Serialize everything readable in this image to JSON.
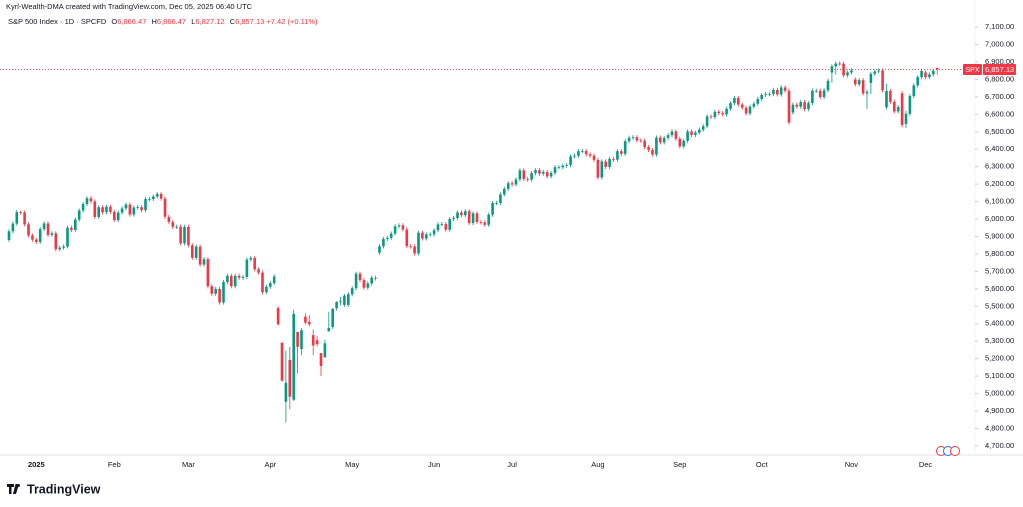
{
  "chart_data": {
    "type": "candlestick",
    "credit": "Kyrl-Wealth-DMA created with TradingView.com, Dec 05, 2025 06:40 UTC",
    "legend": {
      "symbol": "S&P 500 Index · 1D · SPCFD",
      "ohlc": [
        {
          "key": "O",
          "value": "6,866.47"
        },
        {
          "key": "H",
          "value": "6,866.47"
        },
        {
          "key": "L",
          "value": "6,827.12"
        },
        {
          "key": "C",
          "value": "6,857.13"
        }
      ],
      "change": "+7.42 (+0.11%)"
    },
    "brand": "TradingView",
    "up_color": "#089981",
    "down_color": "#f23645",
    "grid": false,
    "price_tag": {
      "symbol": "SPX",
      "value": 6857.13,
      "label": "6,857.13"
    },
    "ylim": [
      4648,
      7152
    ],
    "yticks": [
      {
        "value": 4700,
        "label": "4,700.00"
      },
      {
        "value": 4800,
        "label": "4,800.00"
      },
      {
        "value": 4900,
        "label": "4,900.00"
      },
      {
        "value": 5000,
        "label": "5,000.00"
      },
      {
        "value": 5100,
        "label": "5,100.00"
      },
      {
        "value": 5200,
        "label": "5,200.00"
      },
      {
        "value": 5300,
        "label": "5,300.00"
      },
      {
        "value": 5400,
        "label": "5,400.00"
      },
      {
        "value": 5500,
        "label": "5,500.00"
      },
      {
        "value": 5600,
        "label": "5,600.00"
      },
      {
        "value": 5700,
        "label": "5,700.00"
      },
      {
        "value": 5800,
        "label": "5,800.00"
      },
      {
        "value": 5900,
        "label": "5,900.00"
      },
      {
        "value": 6000,
        "label": "6,000.00"
      },
      {
        "value": 6100,
        "label": "6,100.00"
      },
      {
        "value": 6200,
        "label": "6,200.00"
      },
      {
        "value": 6300,
        "label": "6,300.00"
      },
      {
        "value": 6400,
        "label": "6,400.00"
      },
      {
        "value": 6500,
        "label": "6,500.00"
      },
      {
        "value": 6600,
        "label": "6,600.00"
      },
      {
        "value": 6700,
        "label": "6,700.00"
      },
      {
        "value": 6800,
        "label": "6,800.00"
      },
      {
        "value": 6900,
        "label": "6,900.00"
      },
      {
        "value": 7000,
        "label": "7,000.00"
      },
      {
        "value": 7100,
        "label": "7,100.00"
      }
    ],
    "categories": [
      null,
      null,
      null,
      null,
      null,
      null,
      null,
      "2025",
      null,
      null,
      null,
      null,
      null,
      null,
      null,
      null,
      null,
      null,
      null,
      null,
      null,
      null,
      null,
      null,
      null,
      null,
      null,
      "Feb",
      null,
      null,
      null,
      null,
      null,
      null,
      null,
      null,
      null,
      null,
      null,
      null,
      null,
      null,
      null,
      null,
      null,
      null,
      "Mar",
      null,
      null,
      null,
      null,
      null,
      null,
      null,
      null,
      null,
      null,
      null,
      null,
      null,
      null,
      null,
      null,
      null,
      null,
      null,
      null,
      "Apr",
      null,
      null,
      null,
      null,
      null,
      null,
      null,
      null,
      null,
      null,
      null,
      null,
      null,
      null,
      null,
      null,
      null,
      null,
      null,
      null,
      "May",
      null,
      null,
      null,
      null,
      null,
      null,
      null,
      null,
      null,
      null,
      null,
      null,
      null,
      null,
      null,
      null,
      null,
      null,
      null,
      null,
      "Jun",
      null,
      null,
      null,
      null,
      null,
      null,
      null,
      null,
      null,
      null,
      null,
      null,
      null,
      null,
      null,
      null,
      null,
      null,
      null,
      "Jul",
      null,
      null,
      null,
      null,
      null,
      null,
      null,
      null,
      null,
      null,
      null,
      null,
      null,
      null,
      null,
      null,
      null,
      null,
      null,
      null,
      null,
      "Aug",
      null,
      null,
      null,
      null,
      null,
      null,
      null,
      null,
      null,
      null,
      null,
      null,
      null,
      null,
      null,
      null,
      null,
      null,
      null,
      null,
      "Sep",
      null,
      null,
      null,
      null,
      null,
      null,
      null,
      null,
      null,
      null,
      null,
      null,
      null,
      null,
      null,
      null,
      null,
      null,
      null,
      null,
      "Oct",
      null,
      null,
      null,
      null,
      null,
      null,
      null,
      null,
      null,
      null,
      null,
      null,
      null,
      null,
      null,
      null,
      null,
      null,
      null,
      null,
      null,
      null,
      "Nov",
      null,
      null,
      null,
      null,
      null,
      null,
      null,
      null,
      null,
      null,
      null,
      null,
      null,
      null,
      null,
      null,
      null,
      null,
      "Dec",
      null,
      null,
      null
    ],
    "open": [
      5880,
      5930,
      5974,
      6040,
      6037,
      5970,
      5906,
      5882,
      5869,
      5942,
      5975,
      5909,
      5918,
      5827,
      5836,
      5843,
      5950,
      5937,
      5997,
      6049,
      6086,
      6119,
      6101,
      6012,
      6068,
      6039,
      6071,
      6041,
      5994,
      6037,
      6061,
      6083,
      6026,
      6066,
      6068,
      6051,
      6115,
      6115,
      6129,
      6144,
      6117,
      6013,
      5983,
      5955,
      5956,
      5861,
      5955,
      5850,
      5778,
      5842,
      5739,
      5770,
      5615,
      5572,
      5599,
      5522,
      5639,
      5675,
      5615,
      5675,
      5663,
      5668,
      5768,
      5777,
      5712,
      5693,
      5581,
      5612,
      5633,
      5490,
      5292,
      4953,
      5193,
      4965,
      5353,
      5255,
      5441,
      5411,
      5335,
      5305,
      5232,
      5207,
      5357,
      5381,
      5489,
      5526,
      5508,
      5508,
      5569,
      5604,
      5687,
      5650,
      5607,
      5631,
      5664,
      5807,
      5844,
      5886,
      5892,
      5917,
      5958,
      5964,
      5940,
      5845,
      5842,
      5803,
      5922,
      5889,
      5912,
      5912,
      5936,
      5970,
      5971,
      5939,
      6000,
      6006,
      6038,
      6022,
      6045,
      5977,
      6033,
      5983,
      5981,
      5967,
      6025,
      6092,
      6092,
      6141,
      6173,
      6205,
      6198,
      6227,
      6279,
      6230,
      6226,
      6263,
      6280,
      6260,
      6269,
      6244,
      6264,
      6297,
      6297,
      6306,
      6309,
      6359,
      6363,
      6389,
      6390,
      6371,
      6363,
      6339,
      6238,
      6330,
      6299,
      6345,
      6340,
      6389,
      6374,
      6446,
      6466,
      6469,
      6450,
      6449,
      6412,
      6396,
      6370,
      6467,
      6439,
      6465,
      6481,
      6502,
      6460,
      6416,
      6448,
      6502,
      6482,
      6495,
      6512,
      6532,
      6588,
      6584,
      6615,
      6607,
      6600,
      6632,
      6664,
      6694,
      6656,
      6638,
      6605,
      6644,
      6661,
      6688,
      6711,
      6715,
      6716,
      6740,
      6714,
      6754,
      6735,
      6610,
      6655,
      6644,
      6671,
      6630,
      6664,
      6735,
      6735,
      6699,
      6738,
      6840,
      6875,
      6891,
      6890,
      6823,
      6840,
      6800,
      6772,
      6796,
      6720,
      6780,
      6832,
      6846,
      6851,
      6640,
      6734,
      6672,
      6617,
      6720,
      6545,
      6603,
      6705,
      6766,
      6813,
      6840,
      6813,
      6829,
      6866.47
    ],
    "high": [
      5942,
      5986,
      6052,
      6049,
      6049,
      5982,
      5918,
      5894,
      5954,
      5987,
      5987,
      5930,
      5930,
      5848,
      5855,
      5962,
      5962,
      6009,
      6061,
      6098,
      6131,
      6131,
      6113,
      6080,
      6080,
      6083,
      6083,
      6053,
      6049,
      6073,
      6095,
      6095,
      6078,
      6080,
      6080,
      6127,
      6127,
      6141,
      6156,
      6156,
      6129,
      6025,
      5995,
      5968,
      5968,
      5967,
      5967,
      5862,
      5854,
      5854,
      5782,
      5782,
      5627,
      5611,
      5611,
      5651,
      5687,
      5687,
      5687,
      5687,
      5680,
      5780,
      5789,
      5789,
      5724,
      5705,
      5624,
      5645,
      5683,
      5500,
      5292,
      5246,
      5267,
      5481,
      5353,
      5376,
      5459,
      5450,
      5367,
      5329,
      5232,
      5309,
      5469,
      5490,
      5528,
      5554,
      5571,
      5581,
      5616,
      5699,
      5699,
      5662,
      5643,
      5676,
      5676,
      5856,
      5898,
      5904,
      5929,
      5970,
      5976,
      5976,
      5952,
      5857,
      5854,
      5934,
      5934,
      5924,
      5924,
      5948,
      5982,
      5983,
      5983,
      6012,
      6018,
      6050,
      6050,
      6057,
      6057,
      6045,
      6045,
      5995,
      5993,
      6037,
      6104,
      6104,
      6153,
      6185,
      6217,
      6217,
      6239,
      6291,
      6291,
      6242,
      6275,
      6292,
      6292,
      6281,
      6281,
      6276,
      6309,
      6309,
      6318,
      6321,
      6371,
      6375,
      6401,
      6402,
      6402,
      6383,
      6375,
      6351,
      6342,
      6342,
      6357,
      6357,
      6401,
      6401,
      6458,
      6478,
      6481,
      6481,
      6462,
      6461,
      6424,
      6408,
      6479,
      6479,
      6477,
      6493,
      6514,
      6514,
      6472,
      6460,
      6514,
      6514,
      6507,
      6524,
      6544,
      6600,
      6600,
      6627,
      6627,
      6619,
      6644,
      6676,
      6706,
      6706,
      6668,
      6650,
      6656,
      6673,
      6700,
      6723,
      6727,
      6728,
      6752,
      6752,
      6766,
      6766,
      6747,
      6667,
      6667,
      6683,
      6683,
      6676,
      6747,
      6747,
      6747,
      6750,
      6804,
      6887,
      6903,
      6903,
      6902,
      6852,
      6864,
      6812,
      6808,
      6808,
      6741,
      6844,
      6858,
      6863,
      6863,
      6775,
      6746,
      6684,
      6654,
      6732,
      6620,
      6717,
      6778,
      6825,
      6861,
      6852,
      6841,
      6861,
      6866.47
    ],
    "low": [
      5868,
      5918,
      5962,
      6025,
      5958,
      5894,
      5870,
      5857,
      5857,
      5930,
      5897,
      5897,
      5815,
      5815,
      5824,
      5831,
      5925,
      5925,
      5985,
      6037,
      6074,
      6089,
      6000,
      6000,
      6027,
      6027,
      6029,
      5982,
      5982,
      6025,
      6049,
      6014,
      6014,
      6054,
      6039,
      6039,
      6103,
      6103,
      6117,
      6105,
      6001,
      5971,
      5943,
      5943,
      5849,
      5849,
      5838,
      5766,
      5766,
      5727,
      5727,
      5603,
      5560,
      5560,
      5510,
      5510,
      5627,
      5603,
      5603,
      5651,
      5651,
      5656,
      5756,
      5700,
      5681,
      5569,
      5569,
      5600,
      5621,
      5390,
      5069,
      4835,
      4910,
      4957,
      5115,
      5220,
      5395,
      5386,
      5220,
      5269,
      5101,
      5207,
      5355,
      5371,
      5475,
      5505,
      5497,
      5496,
      5557,
      5592,
      5638,
      5595,
      5595,
      5619,
      5648,
      5795,
      5832,
      5874,
      5880,
      5905,
      5946,
      5928,
      5833,
      5830,
      5791,
      5791,
      5877,
      5877,
      5900,
      5900,
      5924,
      5958,
      5927,
      5927,
      5988,
      5994,
      6010,
      6010,
      5965,
      5965,
      5971,
      5969,
      5955,
      5955,
      6013,
      6080,
      6080,
      6129,
      6161,
      6186,
      6186,
      6215,
      6218,
      6214,
      6214,
      6251,
      6248,
      6248,
      6232,
      6232,
      6252,
      6285,
      6285,
      6294,
      6297,
      6347,
      6351,
      6377,
      6359,
      6351,
      6327,
      6226,
      6226,
      6287,
      6287,
      6328,
      6328,
      6362,
      6362,
      6434,
      6454,
      6438,
      6437,
      6400,
      6384,
      6358,
      6358,
      6427,
      6427,
      6453,
      6469,
      6448,
      6404,
      6404,
      6436,
      6470,
      6470,
      6483,
      6500,
      6520,
      6572,
      6572,
      6595,
      6588,
      6588,
      6620,
      6652,
      6644,
      6626,
      6593,
      6593,
      6632,
      6649,
      6676,
      6699,
      6703,
      6704,
      6702,
      6702,
      6723,
      6541,
      6598,
      6632,
      6632,
      6618,
      6618,
      6652,
      6723,
      6687,
      6687,
      6726,
      6780,
      6828,
      6878,
      6811,
      6811,
      6828,
      6760,
      6760,
      6708,
      6631,
      6717,
      6820,
      6834,
      6726,
      6628,
      6660,
      6605,
      6605,
      6525,
      6521,
      6591,
      6693,
      6754,
      6801,
      6801,
      6801,
      6817,
      6827.12
    ],
    "close": [
      5930,
      5974,
      6040,
      6037,
      5970,
      5906,
      5882,
      5869,
      5942,
      5975,
      5909,
      5918,
      5827,
      5836,
      5843,
      5950,
      5937,
      5997,
      6049,
      6086,
      6119,
      6101,
      6012,
      6068,
      6039,
      6071,
      6041,
      5994,
      6037,
      6061,
      6083,
      6026,
      6066,
      6068,
      6051,
      6115,
      6115,
      6129,
      6144,
      6117,
      6013,
      5983,
      5955,
      5956,
      5861,
      5955,
      5850,
      5778,
      5842,
      5739,
      5770,
      5615,
      5572,
      5599,
      5522,
      5639,
      5675,
      5615,
      5675,
      5663,
      5668,
      5768,
      5777,
      5712,
      5693,
      5581,
      5612,
      5633,
      5671,
      5397,
      5074,
      5062,
      4982,
      5457,
      5268,
      5363,
      5406,
      5397,
      5276,
      5283,
      5158,
      5288,
      5376,
      5485,
      5525,
      5529,
      5561,
      5569,
      5604,
      5687,
      5650,
      5607,
      5631,
      5664,
      5660,
      5844,
      5886,
      5892,
      5917,
      5958,
      5964,
      5940,
      5845,
      5842,
      5803,
      5922,
      5889,
      5912,
      5912,
      5936,
      5970,
      5971,
      5939,
      6000,
      6006,
      6038,
      6022,
      6045,
      5977,
      6033,
      5983,
      5981,
      5967,
      6025,
      6092,
      6092,
      6141,
      6173,
      6205,
      6198,
      6227,
      6279,
      6230,
      6226,
      6263,
      6280,
      6260,
      6269,
      6244,
      6264,
      6297,
      6297,
      6306,
      6309,
      6359,
      6363,
      6389,
      6390,
      6371,
      6363,
      6339,
      6238,
      6330,
      6299,
      6345,
      6340,
      6389,
      6374,
      6446,
      6466,
      6469,
      6450,
      6449,
      6412,
      6396,
      6370,
      6467,
      6439,
      6465,
      6481,
      6502,
      6460,
      6416,
      6448,
      6502,
      6482,
      6495,
      6512,
      6532,
      6588,
      6584,
      6615,
      6607,
      6600,
      6632,
      6664,
      6694,
      6656,
      6638,
      6605,
      6644,
      6661,
      6688,
      6711,
      6715,
      6716,
      6740,
      6714,
      6754,
      6735,
      6553,
      6655,
      6644,
      6671,
      6630,
      6664,
      6735,
      6735,
      6699,
      6738,
      6792,
      6875,
      6891,
      6890,
      6823,
      6840,
      6852,
      6772,
      6796,
      6720,
      6729,
      6832,
      6846,
      6851,
      6738,
      6734,
      6672,
      6617,
      6642,
      6539,
      6603,
      6705,
      6766,
      6813,
      6849,
      6813,
      6829,
      6849.71,
      6857.13
    ]
  }
}
